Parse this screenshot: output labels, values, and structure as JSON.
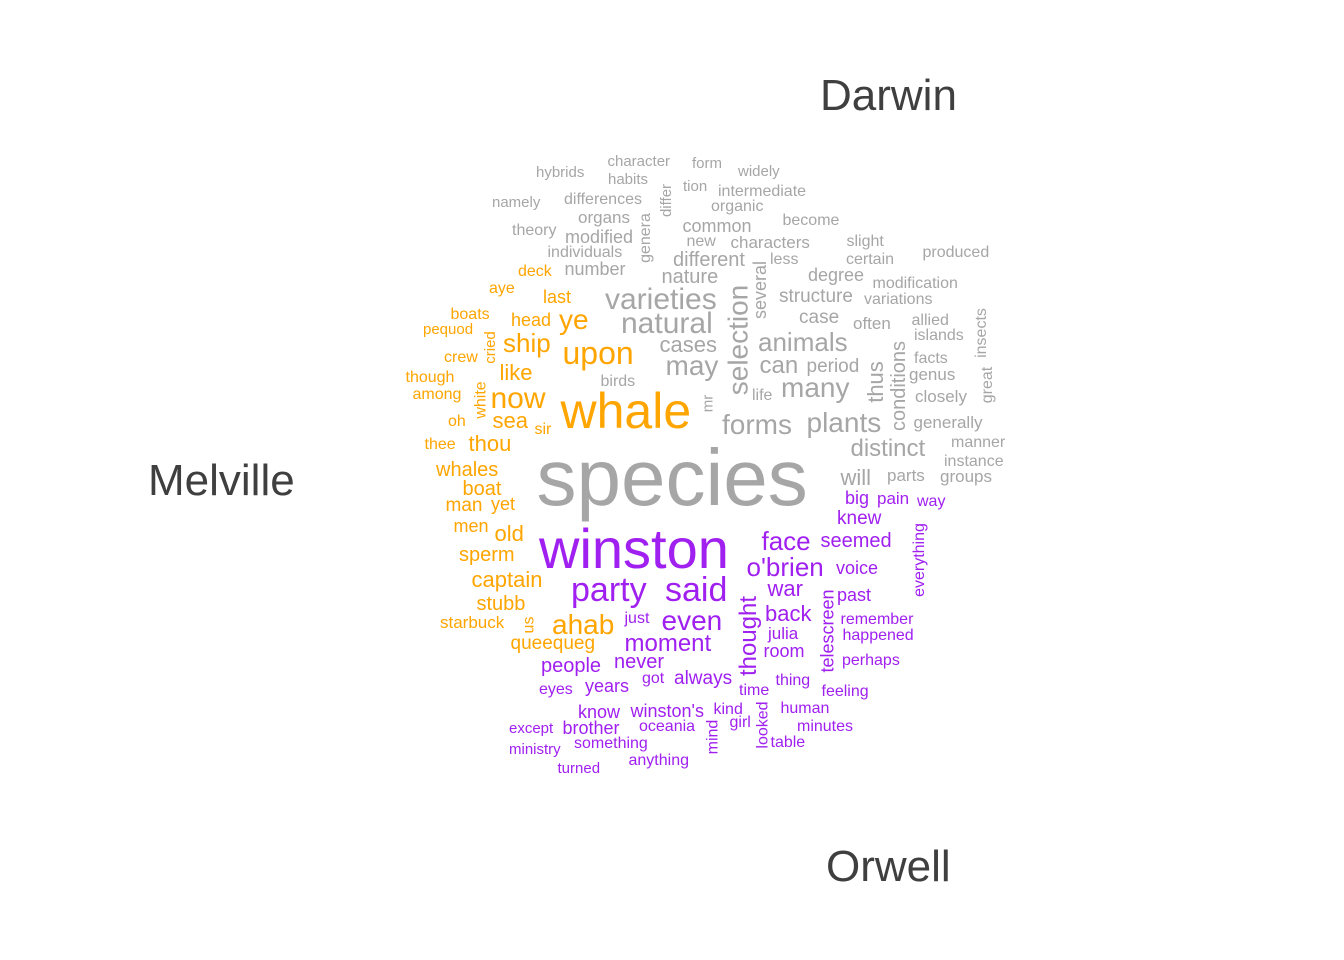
{
  "chart_data": {
    "type": "wordcloud",
    "title": "",
    "groups": [
      {
        "name": "Darwin",
        "color": "#a6a6a6"
      },
      {
        "name": "Melville",
        "color": "#ffa500"
      },
      {
        "name": "Orwell",
        "color": "#a020f0"
      }
    ],
    "words": [
      {
        "text": "species",
        "group": "Darwin",
        "weight": 80
      },
      {
        "text": "varieties",
        "group": "Darwin",
        "weight": 30
      },
      {
        "text": "natural",
        "group": "Darwin",
        "weight": 30
      },
      {
        "text": "selection",
        "group": "Darwin",
        "weight": 28
      },
      {
        "text": "forms",
        "group": "Darwin",
        "weight": 28
      },
      {
        "text": "may",
        "group": "Darwin",
        "weight": 28
      },
      {
        "text": "many",
        "group": "Darwin",
        "weight": 28
      },
      {
        "text": "plants",
        "group": "Darwin",
        "weight": 28
      },
      {
        "text": "animals",
        "group": "Darwin",
        "weight": 26
      },
      {
        "text": "can",
        "group": "Darwin",
        "weight": 24
      },
      {
        "text": "distinct",
        "group": "Darwin",
        "weight": 24
      },
      {
        "text": "cases",
        "group": "Darwin",
        "weight": 22
      },
      {
        "text": "thus",
        "group": "Darwin",
        "weight": 22
      },
      {
        "text": "will",
        "group": "Darwin",
        "weight": 22
      },
      {
        "text": "conditions",
        "group": "Darwin",
        "weight": 20
      },
      {
        "text": "different",
        "group": "Darwin",
        "weight": 20
      },
      {
        "text": "nature",
        "group": "Darwin",
        "weight": 20
      },
      {
        "text": "structure",
        "group": "Darwin",
        "weight": 19
      },
      {
        "text": "case",
        "group": "Darwin",
        "weight": 19
      },
      {
        "text": "period",
        "group": "Darwin",
        "weight": 19
      },
      {
        "text": "several",
        "group": "Darwin",
        "weight": 18
      },
      {
        "text": "common",
        "group": "Darwin",
        "weight": 18
      },
      {
        "text": "degree",
        "group": "Darwin",
        "weight": 18
      },
      {
        "text": "modified",
        "group": "Darwin",
        "weight": 18
      },
      {
        "text": "number",
        "group": "Darwin",
        "weight": 18
      },
      {
        "text": "characters",
        "group": "Darwin",
        "weight": 17
      },
      {
        "text": "closely",
        "group": "Darwin",
        "weight": 17
      },
      {
        "text": "generally",
        "group": "Darwin",
        "weight": 17
      },
      {
        "text": "often",
        "group": "Darwin",
        "weight": 17
      },
      {
        "text": "genus",
        "group": "Darwin",
        "weight": 17
      },
      {
        "text": "groups",
        "group": "Darwin",
        "weight": 17
      },
      {
        "text": "parts",
        "group": "Darwin",
        "weight": 17
      },
      {
        "text": "organs",
        "group": "Darwin",
        "weight": 17
      },
      {
        "text": "individuals",
        "group": "Darwin",
        "weight": 16
      },
      {
        "text": "differences",
        "group": "Darwin",
        "weight": 16
      },
      {
        "text": "certain",
        "group": "Darwin",
        "weight": 16
      },
      {
        "text": "produced",
        "group": "Darwin",
        "weight": 16
      },
      {
        "text": "modification",
        "group": "Darwin",
        "weight": 16
      },
      {
        "text": "islands",
        "group": "Darwin",
        "weight": 16
      },
      {
        "text": "facts",
        "group": "Darwin",
        "weight": 16
      },
      {
        "text": "genera",
        "group": "Darwin",
        "weight": 16
      },
      {
        "text": "new",
        "group": "Darwin",
        "weight": 16
      },
      {
        "text": "less",
        "group": "Darwin",
        "weight": 16
      },
      {
        "text": "intermediate",
        "group": "Darwin",
        "weight": 16
      },
      {
        "text": "organic",
        "group": "Darwin",
        "weight": 16
      },
      {
        "text": "become",
        "group": "Darwin",
        "weight": 16
      },
      {
        "text": "slight",
        "group": "Darwin",
        "weight": 16
      },
      {
        "text": "variations",
        "group": "Darwin",
        "weight": 16
      },
      {
        "text": "allied",
        "group": "Darwin",
        "weight": 16
      },
      {
        "text": "manner",
        "group": "Darwin",
        "weight": 16
      },
      {
        "text": "instance",
        "group": "Darwin",
        "weight": 16
      },
      {
        "text": "birds",
        "group": "Darwin",
        "weight": 16
      },
      {
        "text": "life",
        "group": "Darwin",
        "weight": 16
      },
      {
        "text": "great",
        "group": "Darwin",
        "weight": 16
      },
      {
        "text": "insects",
        "group": "Darwin",
        "weight": 16
      },
      {
        "text": "theory",
        "group": "Darwin",
        "weight": 16
      },
      {
        "text": "namely",
        "group": "Darwin",
        "weight": 15
      },
      {
        "text": "hybrids",
        "group": "Darwin",
        "weight": 15
      },
      {
        "text": "character",
        "group": "Darwin",
        "weight": 15
      },
      {
        "text": "habits",
        "group": "Darwin",
        "weight": 15
      },
      {
        "text": "form",
        "group": "Darwin",
        "weight": 15
      },
      {
        "text": "widely",
        "group": "Darwin",
        "weight": 15
      },
      {
        "text": "tion",
        "group": "Darwin",
        "weight": 15
      },
      {
        "text": "differ",
        "group": "Darwin",
        "weight": 15
      },
      {
        "text": "mr",
        "group": "Darwin",
        "weight": 15
      },
      {
        "text": "whale",
        "group": "Melville",
        "weight": 50
      },
      {
        "text": "upon",
        "group": "Melville",
        "weight": 32
      },
      {
        "text": "now",
        "group": "Melville",
        "weight": 30
      },
      {
        "text": "ye",
        "group": "Melville",
        "weight": 28
      },
      {
        "text": "ahab",
        "group": "Melville",
        "weight": 28
      },
      {
        "text": "ship",
        "group": "Melville",
        "weight": 26
      },
      {
        "text": "thou",
        "group": "Melville",
        "weight": 22
      },
      {
        "text": "sea",
        "group": "Melville",
        "weight": 22
      },
      {
        "text": "like",
        "group": "Melville",
        "weight": 22
      },
      {
        "text": "old",
        "group": "Melville",
        "weight": 22
      },
      {
        "text": "captain",
        "group": "Melville",
        "weight": 22
      },
      {
        "text": "whales",
        "group": "Melville",
        "weight": 20
      },
      {
        "text": "boat",
        "group": "Melville",
        "weight": 20
      },
      {
        "text": "sperm",
        "group": "Melville",
        "weight": 20
      },
      {
        "text": "stubb",
        "group": "Melville",
        "weight": 20
      },
      {
        "text": "queequeg",
        "group": "Melville",
        "weight": 19
      },
      {
        "text": "man",
        "group": "Melville",
        "weight": 19
      },
      {
        "text": "last",
        "group": "Melville",
        "weight": 18
      },
      {
        "text": "head",
        "group": "Melville",
        "weight": 18
      },
      {
        "text": "yet",
        "group": "Melville",
        "weight": 18
      },
      {
        "text": "men",
        "group": "Melville",
        "weight": 18
      },
      {
        "text": "starbuck",
        "group": "Melville",
        "weight": 17
      },
      {
        "text": "deck",
        "group": "Melville",
        "weight": 16
      },
      {
        "text": "aye",
        "group": "Melville",
        "weight": 16
      },
      {
        "text": "boats",
        "group": "Melville",
        "weight": 16
      },
      {
        "text": "pequod",
        "group": "Melville",
        "weight": 15
      },
      {
        "text": "crew",
        "group": "Melville",
        "weight": 16
      },
      {
        "text": "cried",
        "group": "Melville",
        "weight": 15
      },
      {
        "text": "though",
        "group": "Melville",
        "weight": 16
      },
      {
        "text": "among",
        "group": "Melville",
        "weight": 16
      },
      {
        "text": "white",
        "group": "Melville",
        "weight": 16
      },
      {
        "text": "oh",
        "group": "Melville",
        "weight": 16
      },
      {
        "text": "sir",
        "group": "Melville",
        "weight": 16
      },
      {
        "text": "thee",
        "group": "Melville",
        "weight": 16
      },
      {
        "text": "us",
        "group": "Melville",
        "weight": 16
      },
      {
        "text": "winston",
        "group": "Orwell",
        "weight": 56
      },
      {
        "text": "party",
        "group": "Orwell",
        "weight": 34
      },
      {
        "text": "said",
        "group": "Orwell",
        "weight": 34
      },
      {
        "text": "even",
        "group": "Orwell",
        "weight": 28
      },
      {
        "text": "o'brien",
        "group": "Orwell",
        "weight": 26
      },
      {
        "text": "face",
        "group": "Orwell",
        "weight": 26
      },
      {
        "text": "thought",
        "group": "Orwell",
        "weight": 24
      },
      {
        "text": "moment",
        "group": "Orwell",
        "weight": 24
      },
      {
        "text": "back",
        "group": "Orwell",
        "weight": 22
      },
      {
        "text": "war",
        "group": "Orwell",
        "weight": 22
      },
      {
        "text": "seemed",
        "group": "Orwell",
        "weight": 20
      },
      {
        "text": "never",
        "group": "Orwell",
        "weight": 20
      },
      {
        "text": "people",
        "group": "Orwell",
        "weight": 20
      },
      {
        "text": "always",
        "group": "Orwell",
        "weight": 19
      },
      {
        "text": "knew",
        "group": "Orwell",
        "weight": 19
      },
      {
        "text": "telescreen",
        "group": "Orwell",
        "weight": 18
      },
      {
        "text": "big",
        "group": "Orwell",
        "weight": 18
      },
      {
        "text": "voice",
        "group": "Orwell",
        "weight": 18
      },
      {
        "text": "past",
        "group": "Orwell",
        "weight": 18
      },
      {
        "text": "years",
        "group": "Orwell",
        "weight": 18
      },
      {
        "text": "room",
        "group": "Orwell",
        "weight": 18
      },
      {
        "text": "know",
        "group": "Orwell",
        "weight": 18
      },
      {
        "text": "winston's",
        "group": "Orwell",
        "weight": 18
      },
      {
        "text": "brother",
        "group": "Orwell",
        "weight": 18
      },
      {
        "text": "pain",
        "group": "Orwell",
        "weight": 17
      },
      {
        "text": "julia",
        "group": "Orwell",
        "weight": 17
      },
      {
        "text": "remember",
        "group": "Orwell",
        "weight": 16
      },
      {
        "text": "happened",
        "group": "Orwell",
        "weight": 16
      },
      {
        "text": "perhaps",
        "group": "Orwell",
        "weight": 16
      },
      {
        "text": "feeling",
        "group": "Orwell",
        "weight": 16
      },
      {
        "text": "thing",
        "group": "Orwell",
        "weight": 16
      },
      {
        "text": "human",
        "group": "Orwell",
        "weight": 16
      },
      {
        "text": "minutes",
        "group": "Orwell",
        "weight": 16
      },
      {
        "text": "table",
        "group": "Orwell",
        "weight": 16
      },
      {
        "text": "looked",
        "group": "Orwell",
        "weight": 16
      },
      {
        "text": "kind",
        "group": "Orwell",
        "weight": 16
      },
      {
        "text": "girl",
        "group": "Orwell",
        "weight": 16
      },
      {
        "text": "mind",
        "group": "Orwell",
        "weight": 16
      },
      {
        "text": "time",
        "group": "Orwell",
        "weight": 16
      },
      {
        "text": "got",
        "group": "Orwell",
        "weight": 16
      },
      {
        "text": "eyes",
        "group": "Orwell",
        "weight": 16
      },
      {
        "text": "just",
        "group": "Orwell",
        "weight": 16
      },
      {
        "text": "everything",
        "group": "Orwell",
        "weight": 16
      },
      {
        "text": "way",
        "group": "Orwell",
        "weight": 16
      },
      {
        "text": "oceania",
        "group": "Orwell",
        "weight": 16
      },
      {
        "text": "something",
        "group": "Orwell",
        "weight": 16
      },
      {
        "text": "anything",
        "group": "Orwell",
        "weight": 16
      },
      {
        "text": "except",
        "group": "Orwell",
        "weight": 15
      },
      {
        "text": "ministry",
        "group": "Orwell",
        "weight": 15
      },
      {
        "text": "turned",
        "group": "Orwell",
        "weight": 15
      }
    ]
  }
}
